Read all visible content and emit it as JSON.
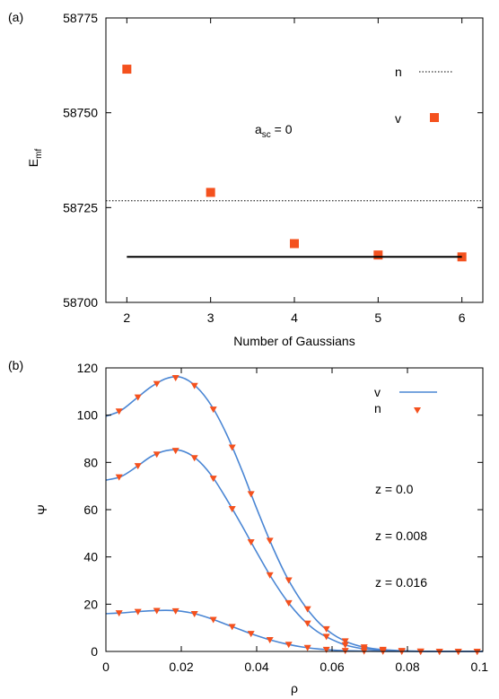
{
  "chart_data": [
    {
      "type": "scatter",
      "panel_label": "(a)",
      "xlabel": "Number of Gaussians",
      "ylabel": "E",
      "ylabel_sub": "mf",
      "xlim": [
        1.75,
        6.25
      ],
      "ylim": [
        58700,
        58775
      ],
      "xticks": [
        "2",
        "3",
        "4",
        "5",
        "6"
      ],
      "xtick_values": [
        2,
        3,
        4,
        5,
        6
      ],
      "yticks": [
        "58700",
        "58725",
        "58750",
        "58775"
      ],
      "ytick_values": [
        58700,
        58725,
        58750,
        58775
      ],
      "annotation": {
        "main": "a",
        "sub": "sc",
        "rest": " = 0"
      },
      "legend": [
        "n",
        "v"
      ],
      "legend_position": "right",
      "series": [
        {
          "name": "v",
          "style": "square-markers",
          "color": "#f4511e",
          "x": [
            2,
            3,
            4,
            5,
            6
          ],
          "y": [
            58761.5,
            58729,
            58715.5,
            58712.5,
            58712
          ]
        },
        {
          "name": "n",
          "style": "dotted-line",
          "color": "#000000",
          "y": 58726.8
        },
        {
          "style": "solid-line",
          "color": "#000000",
          "x": [
            2,
            6
          ],
          "y": 58712
        }
      ]
    },
    {
      "type": "line",
      "panel_label": "(b)",
      "xlabel": "ρ",
      "ylabel": "Ψ",
      "xlim": [
        0,
        0.1
      ],
      "ylim": [
        0,
        120
      ],
      "xticks": [
        "0",
        "0.02",
        "0.04",
        "0.06",
        "0.08",
        "0.1"
      ],
      "xtick_values": [
        0,
        0.02,
        0.04,
        0.06,
        0.08,
        0.1
      ],
      "yticks": [
        "0",
        "20",
        "40",
        "60",
        "80",
        "100",
        "120"
      ],
      "ytick_values": [
        0,
        20,
        40,
        60,
        80,
        100,
        120
      ],
      "legend": [
        "v",
        "n"
      ],
      "legend_position": "top-right",
      "curve_labels": [
        "z = 0.0",
        "z = 0.008",
        "z = 0.016"
      ],
      "line_color": "#4a86d4",
      "marker_color": "#f4511e",
      "series": [
        {
          "z": "0.0",
          "x": [
            0,
            0.004,
            0.008,
            0.012,
            0.016,
            0.02,
            0.024,
            0.028,
            0.032,
            0.036,
            0.04,
            0.044,
            0.048,
            0.052,
            0.056,
            0.06,
            0.064,
            0.068,
            0.072,
            0.076,
            0.08,
            0.084,
            0.088,
            0.092,
            0.096,
            0.1
          ],
          "y": [
            99.5,
            102,
            107,
            112,
            115.5,
            116,
            112,
            104,
            92,
            77,
            60.5,
            45,
            31.5,
            21,
            13,
            7.5,
            4,
            2,
            1,
            0.5,
            0.2,
            0.1,
            0,
            0,
            0,
            0
          ]
        },
        {
          "z": "0.008",
          "x": [
            0,
            0.004,
            0.008,
            0.012,
            0.016,
            0.02,
            0.024,
            0.028,
            0.032,
            0.036,
            0.04,
            0.044,
            0.048,
            0.052,
            0.056,
            0.06,
            0.064,
            0.068,
            0.072,
            0.076,
            0.08,
            0.084,
            0.088,
            0.092,
            0.096,
            0.1
          ],
          "y": [
            72.5,
            74,
            78,
            82.5,
            85,
            85,
            81.5,
            74.5,
            64.5,
            53.5,
            42,
            31,
            21.5,
            14,
            8.5,
            5,
            2.5,
            1.2,
            0.6,
            0.3,
            0.1,
            0,
            0,
            0,
            0,
            0
          ]
        },
        {
          "z": "0.016",
          "x": [
            0,
            0.004,
            0.008,
            0.012,
            0.016,
            0.02,
            0.024,
            0.028,
            0.032,
            0.036,
            0.04,
            0.044,
            0.048,
            0.052,
            0.056,
            0.06,
            0.064,
            0.068,
            0.072,
            0.076,
            0.08,
            0.084,
            0.088,
            0.092,
            0.096,
            0.1
          ],
          "y": [
            16,
            16.3,
            16.8,
            17.2,
            17.4,
            17,
            15.8,
            13.8,
            11.4,
            9,
            6.7,
            4.7,
            3.1,
            1.9,
            1.1,
            0.6,
            0.3,
            0.15,
            0.05,
            0,
            0,
            0,
            0,
            0,
            0,
            0
          ]
        }
      ],
      "markers_x": [
        0.0035,
        0.0085,
        0.0135,
        0.0185,
        0.0235,
        0.0285,
        0.0335,
        0.0385,
        0.0435,
        0.0485,
        0.0535,
        0.0585,
        0.0635,
        0.0685,
        0.0735,
        0.0785,
        0.0835,
        0.0885,
        0.0935,
        0.0985
      ]
    }
  ]
}
